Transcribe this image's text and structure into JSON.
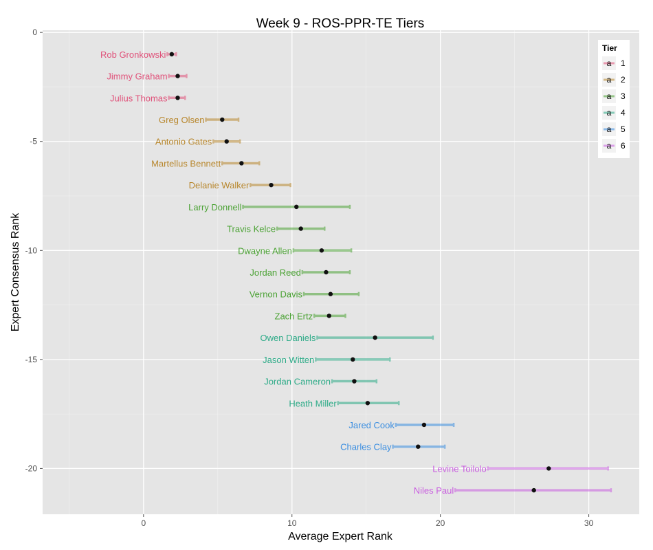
{
  "chart_data": {
    "type": "scatter",
    "title": "Week 9 - ROS-PPR-TE Tiers",
    "xlabel": "Average Expert Rank",
    "ylabel": "Expert Consensus Rank",
    "xlim": [
      -6.8,
      33.4
    ],
    "ylim": [
      -22.1,
      0.1
    ],
    "xticks": [
      0,
      10,
      20,
      30
    ],
    "yticks": [
      0,
      -5,
      -10,
      -15,
      -20
    ],
    "grid": true,
    "legend": {
      "title": "Tier",
      "placement": "top-right",
      "glyph": "a",
      "entries": [
        {
          "label": "1",
          "color": "#e0527a"
        },
        {
          "label": "2",
          "color": "#b8872d"
        },
        {
          "label": "3",
          "color": "#4ba234"
        },
        {
          "label": "4",
          "color": "#2eab88"
        },
        {
          "label": "5",
          "color": "#3b8ee0"
        },
        {
          "label": "6",
          "color": "#c95ee0"
        }
      ]
    },
    "points": [
      {
        "name": "Rob Gronkowski",
        "rank": -1,
        "avg": 1.9,
        "lo": 1.6,
        "hi": 2.2,
        "tier": 1
      },
      {
        "name": "Jimmy Graham",
        "rank": -2,
        "avg": 2.3,
        "lo": 1.7,
        "hi": 2.9,
        "tier": 1
      },
      {
        "name": "Julius Thomas",
        "rank": -3,
        "avg": 2.3,
        "lo": 1.7,
        "hi": 2.8,
        "tier": 1
      },
      {
        "name": "Greg Olsen",
        "rank": -4,
        "avg": 5.3,
        "lo": 4.2,
        "hi": 6.4,
        "tier": 2
      },
      {
        "name": "Antonio Gates",
        "rank": -5,
        "avg": 5.6,
        "lo": 4.7,
        "hi": 6.5,
        "tier": 2
      },
      {
        "name": "Martellus Bennett",
        "rank": -6,
        "avg": 6.6,
        "lo": 5.3,
        "hi": 7.8,
        "tier": 2
      },
      {
        "name": "Delanie Walker",
        "rank": -7,
        "avg": 8.6,
        "lo": 7.2,
        "hi": 9.9,
        "tier": 2
      },
      {
        "name": "Larry Donnell",
        "rank": -8,
        "avg": 10.3,
        "lo": 6.7,
        "hi": 13.9,
        "tier": 3
      },
      {
        "name": "Travis Kelce",
        "rank": -9,
        "avg": 10.6,
        "lo": 9.0,
        "hi": 12.2,
        "tier": 3
      },
      {
        "name": "Dwayne Allen",
        "rank": -10,
        "avg": 12.0,
        "lo": 10.1,
        "hi": 14.0,
        "tier": 3
      },
      {
        "name": "Jordan Reed",
        "rank": -11,
        "avg": 12.3,
        "lo": 10.7,
        "hi": 13.9,
        "tier": 3
      },
      {
        "name": "Vernon Davis",
        "rank": -12,
        "avg": 12.6,
        "lo": 10.8,
        "hi": 14.5,
        "tier": 3
      },
      {
        "name": "Zach Ertz",
        "rank": -13,
        "avg": 12.5,
        "lo": 11.5,
        "hi": 13.6,
        "tier": 3
      },
      {
        "name": "Owen Daniels",
        "rank": -14,
        "avg": 15.6,
        "lo": 11.7,
        "hi": 19.5,
        "tier": 4
      },
      {
        "name": "Jason Witten",
        "rank": -15,
        "avg": 14.1,
        "lo": 11.6,
        "hi": 16.6,
        "tier": 4
      },
      {
        "name": "Jordan Cameron",
        "rank": -16,
        "avg": 14.2,
        "lo": 12.7,
        "hi": 15.7,
        "tier": 4
      },
      {
        "name": "Heath Miller",
        "rank": -17,
        "avg": 15.1,
        "lo": 13.1,
        "hi": 17.2,
        "tier": 4
      },
      {
        "name": "Jared Cook",
        "rank": -18,
        "avg": 18.9,
        "lo": 17.0,
        "hi": 20.9,
        "tier": 5
      },
      {
        "name": "Charles Clay",
        "rank": -19,
        "avg": 18.5,
        "lo": 16.8,
        "hi": 20.3,
        "tier": 5
      },
      {
        "name": "Levine Toilolo",
        "rank": -20,
        "avg": 27.3,
        "lo": 23.2,
        "hi": 31.3,
        "tier": 6
      },
      {
        "name": "Niles Paul",
        "rank": -21,
        "avg": 26.3,
        "lo": 21.0,
        "hi": 31.5,
        "tier": 6
      }
    ]
  }
}
